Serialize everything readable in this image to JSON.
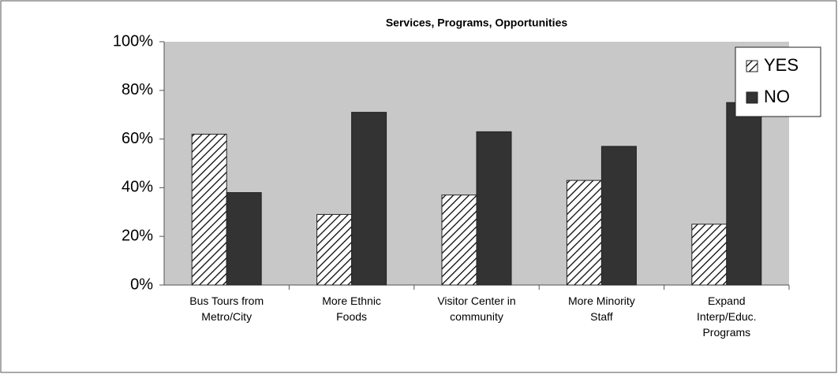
{
  "chart_data": {
    "type": "bar",
    "title": "Services, Programs, Opportunities",
    "categories": [
      "Bus Tours from Metro/City",
      "More Ethnic Foods",
      "Visitor Center in community",
      "More Minority Staff",
      "Expand Interp/Educ. Programs"
    ],
    "series": [
      {
        "name": "YES",
        "color": "#ffffff",
        "values": [
          62,
          29,
          37,
          43,
          25
        ]
      },
      {
        "name": "NO",
        "color": "#333333",
        "values": [
          38,
          71,
          63,
          57,
          75
        ]
      }
    ],
    "ylim": [
      0,
      100
    ],
    "yticks": [
      {
        "value": 0,
        "label": "0%"
      },
      {
        "value": 20,
        "label": "20%"
      },
      {
        "value": 40,
        "label": "40%"
      },
      {
        "value": 60,
        "label": "60%"
      },
      {
        "value": 80,
        "label": "80%"
      },
      {
        "value": 100,
        "label": "100%"
      }
    ],
    "legend": "top-right"
  }
}
